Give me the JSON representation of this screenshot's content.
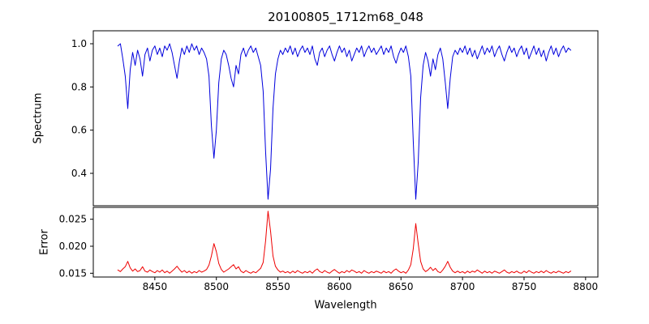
{
  "chart_data": {
    "type": "line",
    "title": "20100805_1712m68_048",
    "xlabel": "Wavelength",
    "xlim": [
      8400,
      8810
    ],
    "xticks": [
      8450,
      8500,
      8550,
      8600,
      8650,
      8700,
      8750,
      8800
    ],
    "xtick_labels": [
      "8450",
      "8500",
      "8550",
      "8600",
      "8650",
      "8700",
      "8750",
      "8800"
    ],
    "grid": false,
    "legend": "none",
    "panels": [
      {
        "name": "spectrum",
        "ylabel": "Spectrum",
        "color": "#0000dd",
        "ylim": [
          0.25,
          1.06
        ],
        "yticks": [
          0.4,
          0.6,
          0.8,
          1.0
        ],
        "ytick_labels": [
          "0.4",
          "0.6",
          "0.8",
          "1.0"
        ]
      },
      {
        "name": "error",
        "ylabel": "Error",
        "color": "#ee0000",
        "ylim": [
          0.0143,
          0.0272
        ],
        "yticks": [
          0.015,
          0.02,
          0.025
        ],
        "ytick_labels": [
          "0.015",
          "0.020",
          "0.025"
        ]
      }
    ],
    "x": [
      8420,
      8422,
      8424,
      8426,
      8428,
      8430,
      8432,
      8434,
      8436,
      8438,
      8440,
      8442,
      8444,
      8446,
      8448,
      8450,
      8452,
      8454,
      8456,
      8458,
      8460,
      8462,
      8464,
      8466,
      8468,
      8470,
      8472,
      8474,
      8476,
      8478,
      8480,
      8482,
      8484,
      8486,
      8488,
      8490,
      8492,
      8494,
      8496,
      8498,
      8500,
      8502,
      8504,
      8506,
      8508,
      8510,
      8512,
      8514,
      8516,
      8518,
      8520,
      8522,
      8524,
      8526,
      8528,
      8530,
      8532,
      8534,
      8536,
      8538,
      8540,
      8542,
      8544,
      8546,
      8548,
      8550,
      8552,
      8554,
      8556,
      8558,
      8560,
      8562,
      8564,
      8566,
      8568,
      8570,
      8572,
      8574,
      8576,
      8578,
      8580,
      8582,
      8584,
      8586,
      8588,
      8590,
      8592,
      8594,
      8596,
      8598,
      8600,
      8602,
      8604,
      8606,
      8608,
      8610,
      8612,
      8614,
      8616,
      8618,
      8620,
      8622,
      8624,
      8626,
      8628,
      8630,
      8632,
      8634,
      8636,
      8638,
      8640,
      8642,
      8644,
      8646,
      8648,
      8650,
      8652,
      8654,
      8656,
      8658,
      8660,
      8662,
      8664,
      8666,
      8668,
      8670,
      8672,
      8674,
      8676,
      8678,
      8680,
      8682,
      8684,
      8686,
      8688,
      8690,
      8692,
      8694,
      8696,
      8698,
      8700,
      8702,
      8704,
      8706,
      8708,
      8710,
      8712,
      8714,
      8716,
      8718,
      8720,
      8722,
      8724,
      8726,
      8728,
      8730,
      8732,
      8734,
      8736,
      8738,
      8740,
      8742,
      8744,
      8746,
      8748,
      8750,
      8752,
      8754,
      8756,
      8758,
      8760,
      8762,
      8764,
      8766,
      8768,
      8770,
      8772,
      8774,
      8776,
      8778,
      8780,
      8782,
      8784,
      8786,
      8788
    ],
    "series": [
      {
        "name": "spectrum",
        "values": [
          0.99,
          1.0,
          0.93,
          0.85,
          0.7,
          0.88,
          0.96,
          0.9,
          0.97,
          0.93,
          0.85,
          0.95,
          0.98,
          0.92,
          0.97,
          0.99,
          0.95,
          0.98,
          0.94,
          0.99,
          0.97,
          1.0,
          0.96,
          0.9,
          0.84,
          0.92,
          0.98,
          0.95,
          0.99,
          0.96,
          1.0,
          0.97,
          0.99,
          0.95,
          0.98,
          0.96,
          0.93,
          0.85,
          0.62,
          0.47,
          0.6,
          0.82,
          0.93,
          0.97,
          0.95,
          0.9,
          0.84,
          0.8,
          0.9,
          0.86,
          0.95,
          0.98,
          0.94,
          0.97,
          0.99,
          0.96,
          0.98,
          0.94,
          0.9,
          0.78,
          0.5,
          0.28,
          0.42,
          0.7,
          0.86,
          0.93,
          0.97,
          0.95,
          0.98,
          0.96,
          0.99,
          0.95,
          0.98,
          0.94,
          0.97,
          0.99,
          0.96,
          0.98,
          0.95,
          0.99,
          0.93,
          0.9,
          0.96,
          0.98,
          0.94,
          0.97,
          0.99,
          0.95,
          0.92,
          0.96,
          0.99,
          0.96,
          0.98,
          0.94,
          0.97,
          0.92,
          0.95,
          0.98,
          0.96,
          0.99,
          0.94,
          0.97,
          0.99,
          0.96,
          0.98,
          0.95,
          0.97,
          0.99,
          0.95,
          0.98,
          0.96,
          0.99,
          0.94,
          0.91,
          0.95,
          0.98,
          0.96,
          0.99,
          0.94,
          0.85,
          0.55,
          0.28,
          0.45,
          0.75,
          0.9,
          0.96,
          0.92,
          0.85,
          0.93,
          0.88,
          0.95,
          0.98,
          0.93,
          0.82,
          0.7,
          0.84,
          0.94,
          0.97,
          0.95,
          0.98,
          0.96,
          0.99,
          0.95,
          0.98,
          0.94,
          0.97,
          0.93,
          0.96,
          0.99,
          0.95,
          0.98,
          0.96,
          0.99,
          0.94,
          0.97,
          0.99,
          0.95,
          0.92,
          0.96,
          0.99,
          0.96,
          0.98,
          0.94,
          0.97,
          0.99,
          0.95,
          0.98,
          0.93,
          0.96,
          0.99,
          0.95,
          0.98,
          0.94,
          0.97,
          0.92,
          0.96,
          0.99,
          0.95,
          0.98,
          0.94,
          0.97,
          0.99,
          0.96,
          0.98,
          0.97
        ]
      },
      {
        "name": "error",
        "values": [
          0.0156,
          0.0153,
          0.0158,
          0.0162,
          0.0172,
          0.016,
          0.0154,
          0.0158,
          0.0153,
          0.0155,
          0.0162,
          0.0154,
          0.0152,
          0.0156,
          0.0153,
          0.0151,
          0.0155,
          0.0152,
          0.0156,
          0.0151,
          0.0154,
          0.015,
          0.0154,
          0.0158,
          0.0163,
          0.0157,
          0.0152,
          0.0155,
          0.0151,
          0.0154,
          0.015,
          0.0153,
          0.0151,
          0.0155,
          0.0152,
          0.0154,
          0.0157,
          0.0165,
          0.0182,
          0.0205,
          0.019,
          0.0168,
          0.0157,
          0.0152,
          0.0155,
          0.0158,
          0.0162,
          0.0166,
          0.0158,
          0.0162,
          0.0154,
          0.0151,
          0.0155,
          0.0152,
          0.015,
          0.0153,
          0.0151,
          0.0155,
          0.0159,
          0.017,
          0.021,
          0.0265,
          0.0228,
          0.0182,
          0.0163,
          0.0156,
          0.0152,
          0.0154,
          0.0151,
          0.0153,
          0.015,
          0.0154,
          0.0151,
          0.0155,
          0.0152,
          0.015,
          0.0153,
          0.0151,
          0.0154,
          0.015,
          0.0155,
          0.0158,
          0.0153,
          0.0151,
          0.0155,
          0.0152,
          0.015,
          0.0154,
          0.0157,
          0.0153,
          0.015,
          0.0153,
          0.0151,
          0.0155,
          0.0152,
          0.0156,
          0.0154,
          0.0151,
          0.0153,
          0.015,
          0.0155,
          0.0152,
          0.015,
          0.0153,
          0.0151,
          0.0154,
          0.0152,
          0.015,
          0.0154,
          0.0151,
          0.0153,
          0.015,
          0.0155,
          0.0158,
          0.0154,
          0.0151,
          0.0153,
          0.015,
          0.0156,
          0.0166,
          0.0195,
          0.0242,
          0.0205,
          0.0172,
          0.0158,
          0.0153,
          0.0156,
          0.0161,
          0.0155,
          0.0159,
          0.0153,
          0.0151,
          0.0156,
          0.0163,
          0.0172,
          0.0161,
          0.0154,
          0.0151,
          0.0154,
          0.0151,
          0.0153,
          0.015,
          0.0154,
          0.0151,
          0.0154,
          0.0152,
          0.0156,
          0.0153,
          0.015,
          0.0154,
          0.0151,
          0.0153,
          0.015,
          0.0154,
          0.0152,
          0.015,
          0.0153,
          0.0156,
          0.0152,
          0.015,
          0.0153,
          0.0151,
          0.0154,
          0.0151,
          0.015,
          0.0154,
          0.0151,
          0.0155,
          0.0152,
          0.015,
          0.0153,
          0.0151,
          0.0154,
          0.0151,
          0.0155,
          0.0152,
          0.015,
          0.0153,
          0.0151,
          0.0154,
          0.0152,
          0.015,
          0.0153,
          0.0151,
          0.0154
        ]
      }
    ]
  }
}
